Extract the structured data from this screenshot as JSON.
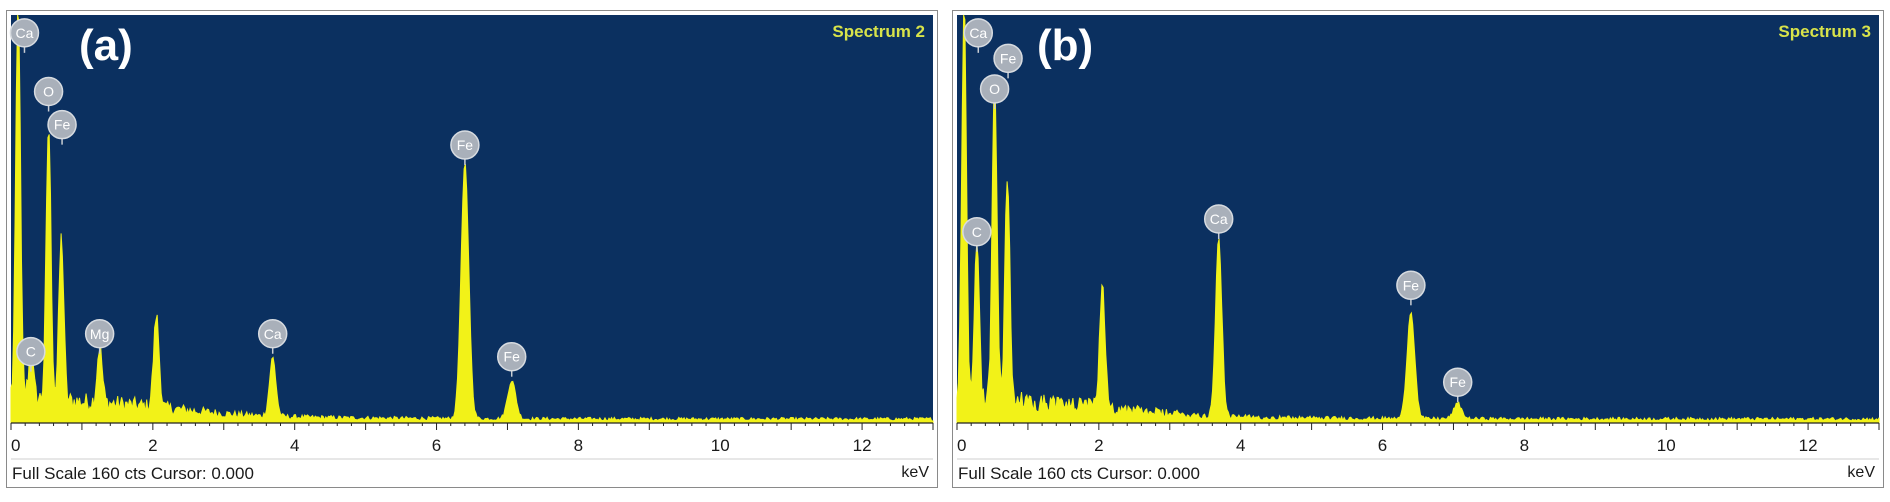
{
  "chart_data": [
    {
      "type": "area",
      "panel_letter": "(a)",
      "spectrum_label": "Spectrum 2",
      "footer": "Full Scale 160 cts Cursor: 0.000",
      "xlabel": "keV",
      "xlim": [
        0,
        13
      ],
      "x_ticks": [
        "0",
        "2",
        "4",
        "6",
        "8",
        "10",
        "12"
      ],
      "ylim": [
        0,
        160
      ],
      "colors": {
        "plot_bg": "#0b3060",
        "trace": "#f2f218",
        "label": "#d8e34a",
        "marker": "#a9b0ba"
      },
      "peaks": [
        {
          "element": "Ca",
          "keV": 0.1,
          "height": 160
        },
        {
          "element": "C",
          "keV": 0.28,
          "height": 18
        },
        {
          "element": "O",
          "keV": 0.53,
          "height": 108
        },
        {
          "element": "Fe",
          "keV": 0.71,
          "height": 64
        },
        {
          "element": "Mg",
          "keV": 1.25,
          "height": 22
        },
        {
          "element": "",
          "keV": 2.05,
          "height": 36
        },
        {
          "element": "Ca",
          "keV": 3.69,
          "height": 23
        },
        {
          "element": "Fe",
          "keV": 6.4,
          "height": 100
        },
        {
          "element": "Fe",
          "keV": 7.06,
          "height": 15
        }
      ],
      "markers": [
        {
          "text": "Ca",
          "keV": 0.19,
          "height": 153
        },
        {
          "text": "O",
          "keV": 0.53,
          "height": 130
        },
        {
          "text": "Fe",
          "keV": 0.72,
          "height": 117
        },
        {
          "text": "C",
          "keV": 0.28,
          "height": 28
        },
        {
          "text": "Mg",
          "keV": 1.25,
          "height": 35
        },
        {
          "text": "Ca",
          "keV": 3.69,
          "height": 35
        },
        {
          "text": "Fe",
          "keV": 6.4,
          "height": 109
        },
        {
          "text": "Fe",
          "keV": 7.06,
          "height": 26
        }
      ]
    },
    {
      "type": "area",
      "panel_letter": "(b)",
      "spectrum_label": "Spectrum 3",
      "footer": "Full Scale 160 cts Cursor: 0.000",
      "xlabel": "keV",
      "xlim": [
        0,
        13
      ],
      "x_ticks": [
        "0",
        "2",
        "4",
        "6",
        "8",
        "10",
        "12"
      ],
      "ylim": [
        0,
        160
      ],
      "colors": {
        "plot_bg": "#0b3060",
        "trace": "#f2f218",
        "label": "#d8e34a",
        "marker": "#a9b0ba"
      },
      "peaks": [
        {
          "element": "Ca",
          "keV": 0.1,
          "height": 160
        },
        {
          "element": "C",
          "keV": 0.28,
          "height": 62
        },
        {
          "element": "O",
          "keV": 0.53,
          "height": 128
        },
        {
          "element": "Fe",
          "keV": 0.71,
          "height": 90
        },
        {
          "element": "",
          "keV": 2.05,
          "height": 48
        },
        {
          "element": "Ca",
          "keV": 3.69,
          "height": 70
        },
        {
          "element": "Fe",
          "keV": 6.4,
          "height": 42
        },
        {
          "element": "Fe",
          "keV": 7.06,
          "height": 6
        }
      ],
      "markers": [
        {
          "text": "Ca",
          "keV": 0.3,
          "height": 153
        },
        {
          "text": "Fe",
          "keV": 0.72,
          "height": 143
        },
        {
          "text": "O",
          "keV": 0.53,
          "height": 131
        },
        {
          "text": "C",
          "keV": 0.28,
          "height": 75
        },
        {
          "text": "Ca",
          "keV": 3.69,
          "height": 80
        },
        {
          "text": "Fe",
          "keV": 6.4,
          "height": 54
        },
        {
          "text": "Fe",
          "keV": 7.06,
          "height": 16
        }
      ]
    }
  ]
}
